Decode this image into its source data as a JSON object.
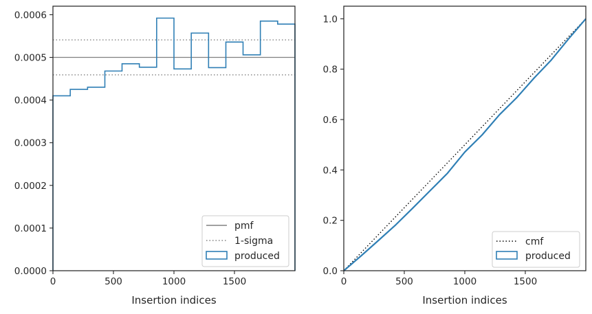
{
  "chart_data": [
    {
      "type": "step-histogram",
      "xlabel": "Insertion indices",
      "ylabel": "",
      "xlim": [
        0,
        2000
      ],
      "ylim": [
        0,
        0.00062
      ],
      "xticks": [
        0,
        500,
        1000,
        1500
      ],
      "xtick_labels": [
        "0",
        "500",
        "1000",
        "1500"
      ],
      "yticks": [
        0,
        0.0001,
        0.0002,
        0.0003,
        0.0004,
        0.0005,
        0.0006
      ],
      "ytick_labels": [
        "0.0000",
        "0.0001",
        "0.0002",
        "0.0003",
        "0.0004",
        "0.0005",
        "0.0006"
      ],
      "bin_edges": [
        0,
        143,
        286,
        429,
        571,
        714,
        857,
        1000,
        1143,
        1286,
        1429,
        1571,
        1714,
        1857,
        2000
      ],
      "series": [
        {
          "name": "pmf",
          "style": "solid",
          "color": "#808080",
          "value": 0.0005
        },
        {
          "name": "1-sigma",
          "style": "dotted",
          "color": "#808080",
          "values": [
            0.000459,
            0.000541
          ]
        },
        {
          "name": "produced",
          "style": "step",
          "color": "#2f7fb5",
          "values": [
            0.00041,
            0.000425,
            0.00043,
            0.000468,
            0.000485,
            0.000477,
            0.000592,
            0.000473,
            0.000557,
            0.000476,
            0.000536,
            0.000506,
            0.000585,
            0.000578
          ]
        }
      ],
      "legend_position": "lower-right",
      "legend": [
        "pmf",
        "1-sigma",
        "produced"
      ]
    },
    {
      "type": "line",
      "xlabel": "Insertion indices",
      "ylabel": "",
      "xlim": [
        0,
        2000
      ],
      "ylim": [
        0,
        1.05
      ],
      "xticks": [
        0,
        500,
        1000,
        1500
      ],
      "xtick_labels": [
        "0",
        "500",
        "1000",
        "1500"
      ],
      "yticks": [
        0,
        0.2,
        0.4,
        0.6,
        0.8,
        1.0
      ],
      "ytick_labels": [
        "0.0",
        "0.2",
        "0.4",
        "0.6",
        "0.8",
        "1.0"
      ],
      "series": [
        {
          "name": "cmf",
          "style": "dotted",
          "color": "#000000",
          "x": [
            0,
            2000
          ],
          "y": [
            0,
            1.0
          ]
        },
        {
          "name": "produced",
          "style": "step",
          "color": "#2f7fb5",
          "x": [
            0,
            143,
            286,
            429,
            571,
            714,
            857,
            1000,
            1143,
            1286,
            1429,
            1571,
            1714,
            1857,
            2000
          ],
          "y": [
            0,
            0.059,
            0.12,
            0.182,
            0.249,
            0.318,
            0.387,
            0.471,
            0.539,
            0.619,
            0.687,
            0.764,
            0.836,
            0.92,
            1.0
          ]
        }
      ],
      "legend_position": "lower-right",
      "legend": [
        "cmf",
        "produced"
      ]
    }
  ]
}
